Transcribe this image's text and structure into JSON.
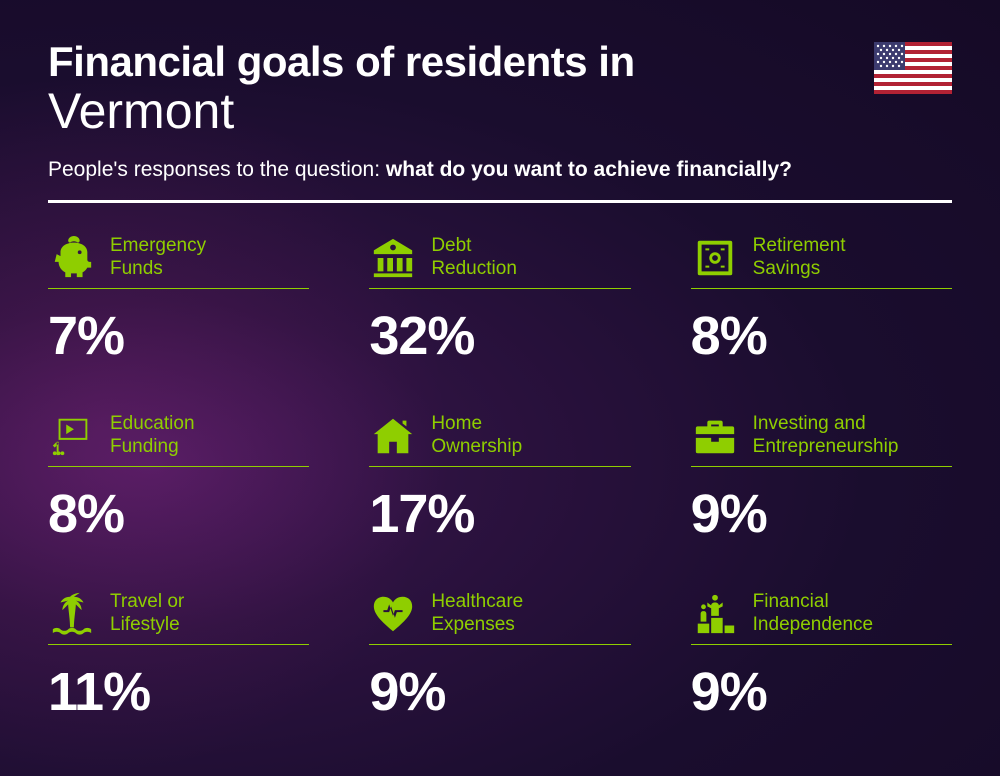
{
  "header": {
    "title_prefix": "Financial goals of residents in",
    "location": "Vermont",
    "subtitle_prefix": "People's responses to the question: ",
    "subtitle_bold": "what do you want to achieve financially?"
  },
  "accent_color": "#8fce00",
  "background_gradient": [
    "#4a1a5e",
    "#2d1240",
    "#1a0d2e",
    "#150a26"
  ],
  "text_color": "#ffffff",
  "items": [
    {
      "label": "Emergency Funds",
      "value": "7%",
      "icon": "piggy-bank"
    },
    {
      "label": "Debt Reduction",
      "value": "32%",
      "icon": "bank"
    },
    {
      "label": "Retirement Savings",
      "value": "8%",
      "icon": "safe"
    },
    {
      "label": "Education Funding",
      "value": "8%",
      "icon": "presentation"
    },
    {
      "label": "Home Ownership",
      "value": "17%",
      "icon": "house"
    },
    {
      "label": "Investing and Entrepreneurship",
      "value": "9%",
      "icon": "briefcase"
    },
    {
      "label": "Travel or Lifestyle",
      "value": "11%",
      "icon": "palm-tree"
    },
    {
      "label": "Healthcare Expenses",
      "value": "9%",
      "icon": "heart-pulse"
    },
    {
      "label": "Financial Independence",
      "value": "9%",
      "icon": "podium"
    }
  ],
  "styling": {
    "title_fontsize": 42,
    "location_fontsize": 50,
    "subtitle_fontsize": 21,
    "label_fontsize": 19,
    "percent_fontsize": 54,
    "grid_columns": 3,
    "column_gap": 60,
    "row_gap": 44
  }
}
